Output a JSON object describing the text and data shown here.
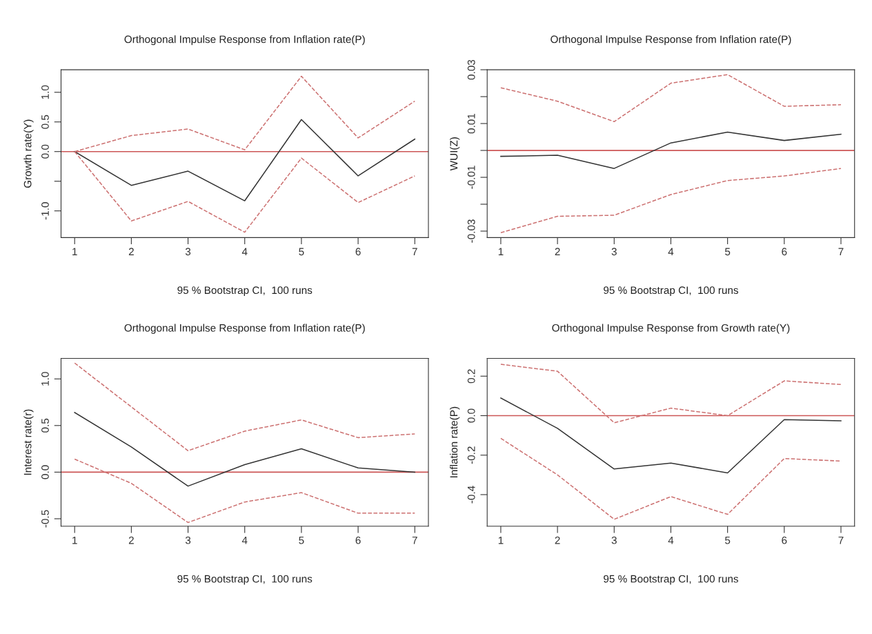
{
  "chart_data": [
    {
      "type": "line",
      "title": "Orthogonal Impulse Response from Inflation rate(P)",
      "xlabel": "95 % Bootstrap CI,  100 runs",
      "ylabel": "Growth rate(Y)",
      "x": [
        1,
        2,
        3,
        4,
        5,
        6,
        7
      ],
      "series": [
        {
          "color": "#333333",
          "line_style": "solid",
          "values": [
            0,
            -0.57,
            -0.33,
            -0.83,
            0.54,
            -0.41,
            0.21
          ]
        },
        {
          "color": "#cc7070",
          "line_style": "dashed",
          "values": [
            0,
            0.27,
            0.38,
            0.03,
            1.27,
            0.23,
            0.85
          ]
        },
        {
          "color": "#cc7070",
          "line_style": "dashed",
          "values": [
            0,
            -1.17,
            -0.84,
            -1.36,
            -0.11,
            -0.86,
            -0.41
          ]
        }
      ],
      "xlim": [
        0.76,
        7.24
      ],
      "ylim": [
        -1.45,
        1.38
      ],
      "xticks": [
        1,
        2,
        3,
        4,
        5,
        6,
        7
      ],
      "yticks": [
        {
          "value": -1.0,
          "label": "-1.0"
        },
        {
          "value": -0.5,
          "label": null
        },
        {
          "value": 0.0,
          "label": "0.0"
        },
        {
          "value": 0.5,
          "label": "0.5"
        },
        {
          "value": 1.0,
          "label": "1.0"
        }
      ],
      "ref_lines": [
        {
          "axis": "y",
          "value": 0,
          "color": "#cc5555"
        }
      ]
    },
    {
      "type": "line",
      "title": "Orthogonal Impulse Response from Inflation rate(P)",
      "xlabel": "95 % Bootstrap CI,  100 runs",
      "ylabel": "WUI(Z)",
      "x": [
        1,
        2,
        3,
        4,
        5,
        6,
        7
      ],
      "series": [
        {
          "color": "#333333",
          "line_style": "solid",
          "values": [
            -0.0022,
            -0.0018,
            -0.0067,
            0.0028,
            0.0068,
            0.0037,
            0.006
          ]
        },
        {
          "color": "#cc7070",
          "line_style": "dashed",
          "values": [
            0.0233,
            0.0183,
            0.0107,
            0.025,
            0.0282,
            0.0164,
            0.017
          ]
        },
        {
          "color": "#cc7070",
          "line_style": "dashed",
          "values": [
            -0.0306,
            -0.0245,
            -0.0241,
            -0.0164,
            -0.0112,
            -0.0095,
            -0.0067
          ]
        }
      ],
      "xlim": [
        0.76,
        7.24
      ],
      "ylim": [
        -0.0324,
        0.03
      ],
      "xticks": [
        1,
        2,
        3,
        4,
        5,
        6,
        7
      ],
      "yticks": [
        {
          "value": -0.03,
          "label": "-0.03"
        },
        {
          "value": -0.02,
          "label": null
        },
        {
          "value": -0.01,
          "label": "-0.01"
        },
        {
          "value": 0.0,
          "label": null
        },
        {
          "value": 0.01,
          "label": "0.01"
        },
        {
          "value": 0.02,
          "label": null
        },
        {
          "value": 0.03,
          "label": "0.03"
        }
      ],
      "ref_lines": [
        {
          "axis": "y",
          "value": 0,
          "color": "#cc5555"
        }
      ]
    },
    {
      "type": "line",
      "title": "Orthogonal Impulse Response from Inflation rate(P)",
      "xlabel": "95 % Bootstrap CI,  100 runs",
      "ylabel": "Interest rate(r)",
      "x": [
        1,
        2,
        3,
        4,
        5,
        6,
        7
      ],
      "series": [
        {
          "color": "#333333",
          "line_style": "solid",
          "values": [
            0.64,
            0.27,
            -0.15,
            0.08,
            0.25,
            0.045,
            0.0
          ]
        },
        {
          "color": "#cc7070",
          "line_style": "dashed",
          "values": [
            1.17,
            0.7,
            0.23,
            0.44,
            0.56,
            0.37,
            0.41
          ]
        },
        {
          "color": "#cc7070",
          "line_style": "dashed",
          "values": [
            0.14,
            -0.12,
            -0.54,
            -0.32,
            -0.22,
            -0.44,
            -0.44
          ]
        }
      ],
      "xlim": [
        0.76,
        7.24
      ],
      "ylim": [
        -0.58,
        1.22
      ],
      "xticks": [
        1,
        2,
        3,
        4,
        5,
        6,
        7
      ],
      "yticks": [
        {
          "value": -0.5,
          "label": "-0.5"
        },
        {
          "value": 0.0,
          "label": "0.0"
        },
        {
          "value": 0.5,
          "label": "0.5"
        },
        {
          "value": 1.0,
          "label": "1.0"
        }
      ],
      "ref_lines": [
        {
          "axis": "y",
          "value": 0,
          "color": "#cc5555"
        }
      ]
    },
    {
      "type": "line",
      "title": "Orthogonal Impulse Response from Growth rate(Y)",
      "xlabel": "95 % Bootstrap CI,  100 runs",
      "ylabel": "Inflation rate(P)",
      "x": [
        1,
        2,
        3,
        4,
        5,
        6,
        7
      ],
      "series": [
        {
          "color": "#333333",
          "line_style": "solid",
          "values": [
            0.089,
            -0.064,
            -0.27,
            -0.24,
            -0.29,
            -0.02,
            -0.026
          ]
        },
        {
          "color": "#cc7070",
          "line_style": "dashed",
          "values": [
            0.26,
            0.225,
            -0.036,
            0.038,
            0.0,
            0.176,
            0.158
          ]
        },
        {
          "color": "#cc7070",
          "line_style": "dashed",
          "values": [
            -0.115,
            -0.3,
            -0.525,
            -0.41,
            -0.5,
            -0.217,
            -0.23
          ]
        }
      ],
      "xlim": [
        0.76,
        7.24
      ],
      "ylim": [
        -0.56,
        0.29
      ],
      "xticks": [
        1,
        2,
        3,
        4,
        5,
        6,
        7
      ],
      "yticks": [
        {
          "value": -0.4,
          "label": "-0.4"
        },
        {
          "value": -0.2,
          "label": "-0.2"
        },
        {
          "value": 0.0,
          "label": "0.0"
        },
        {
          "value": 0.2,
          "label": "0.2"
        }
      ],
      "ref_lines": [
        {
          "axis": "y",
          "value": 0,
          "color": "#cc5555"
        }
      ]
    }
  ]
}
